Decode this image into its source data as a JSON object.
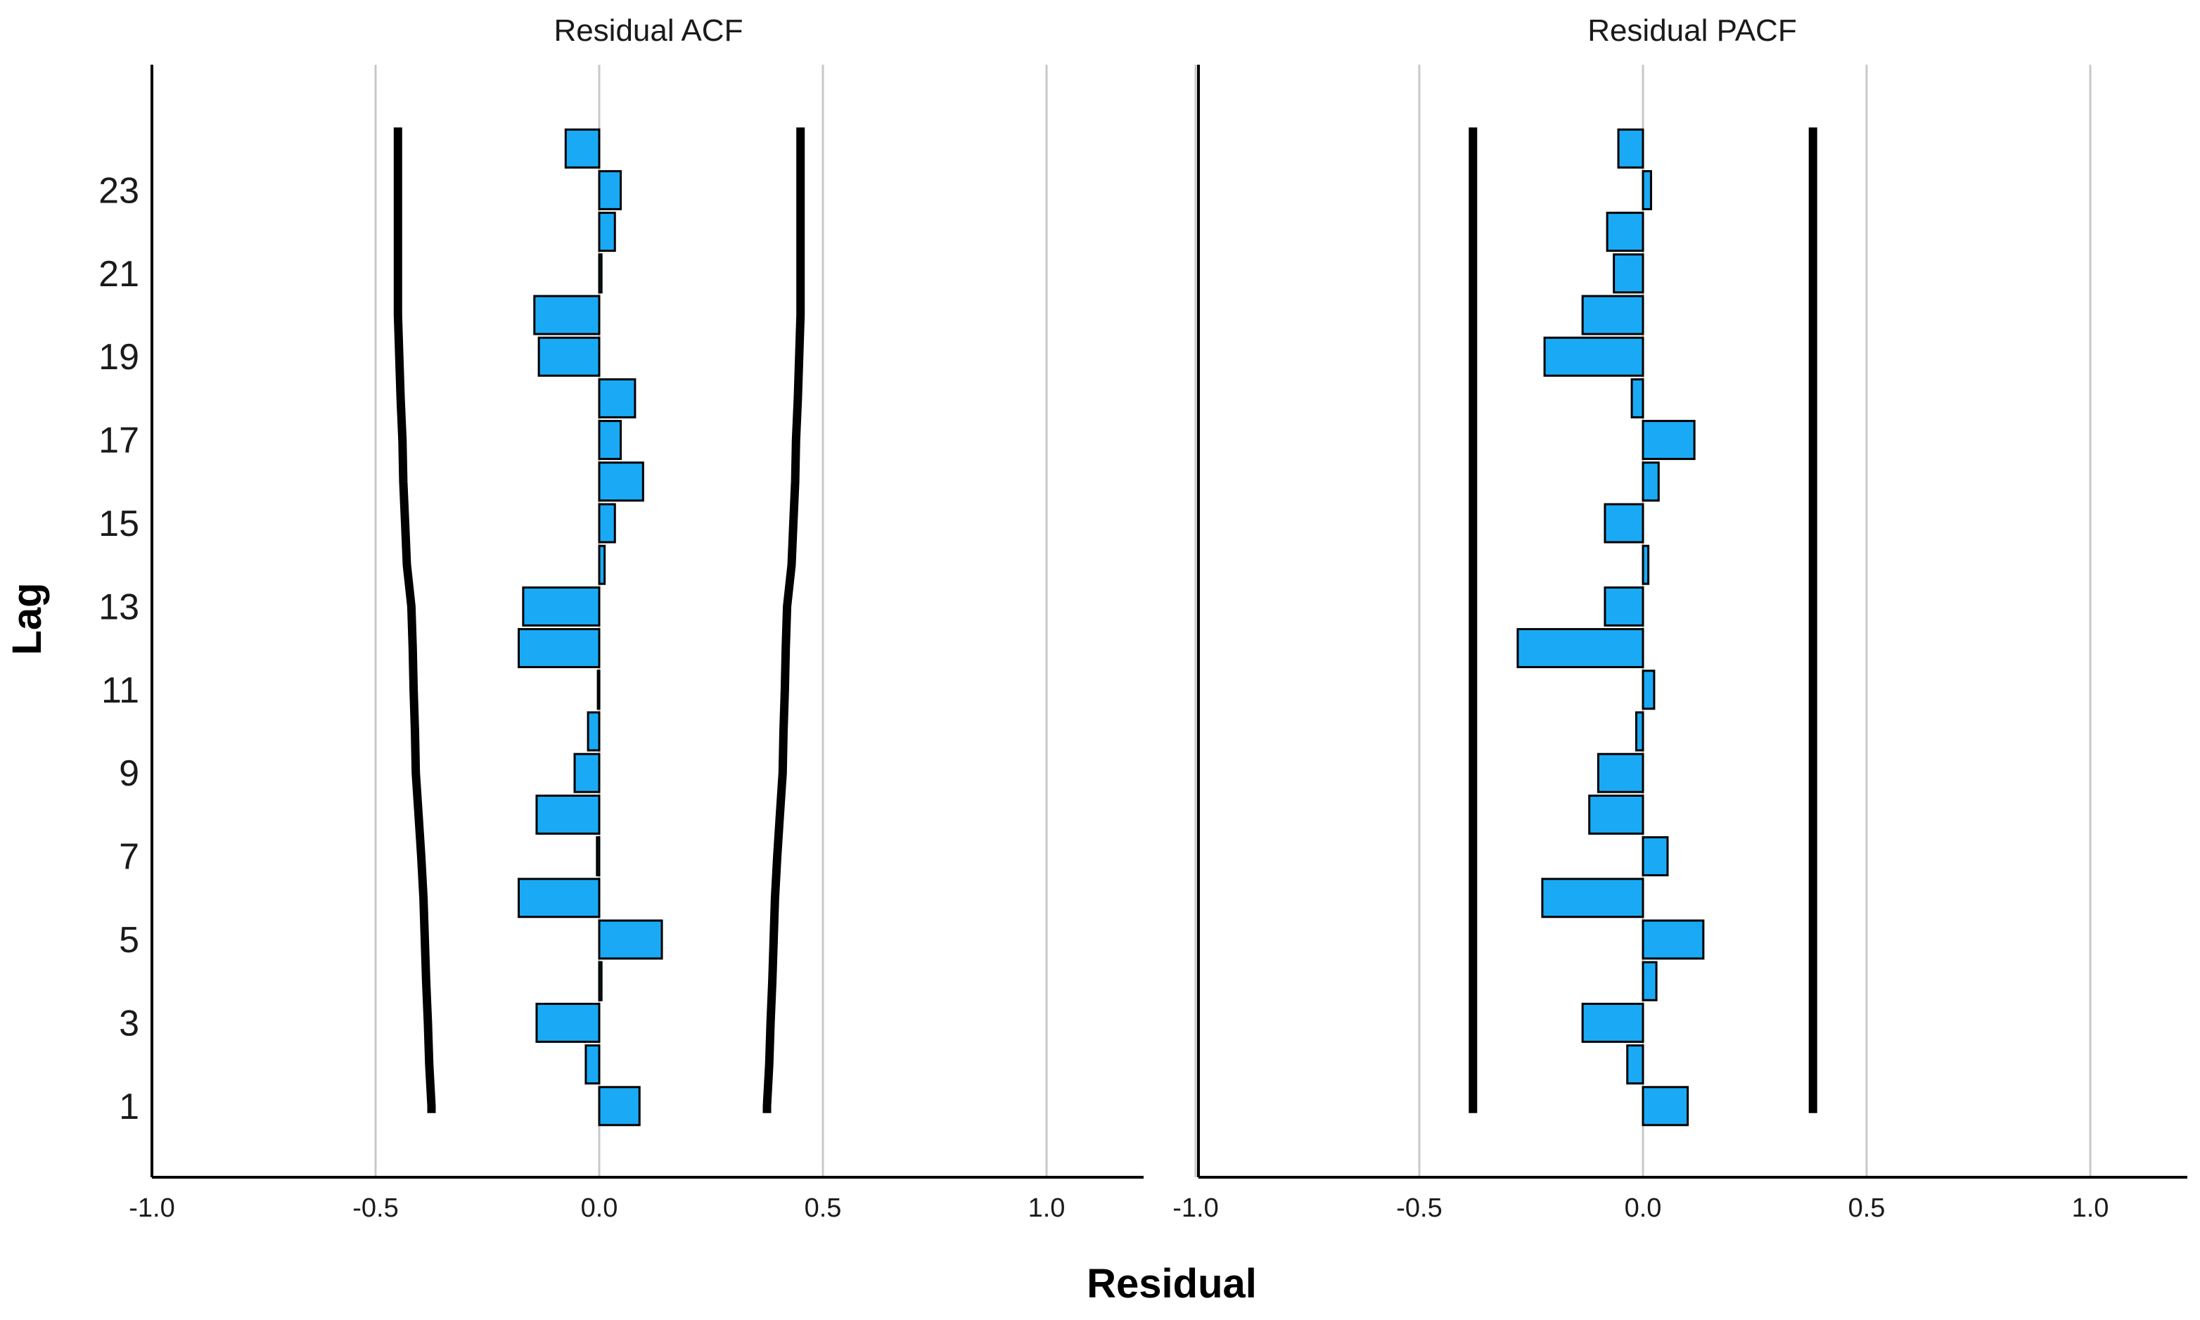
{
  "chart_data": {
    "type": "bar",
    "orientation": "horizontal",
    "xlabel": "Residual",
    "ylabel": "Lag",
    "xlim": [
      -1.0,
      1.2
    ],
    "x_ticks": [
      "-1.0",
      "-0.5",
      "0.0",
      "0.5",
      "1.0"
    ],
    "x_tick_values": [
      -1.0,
      -0.5,
      0.0,
      0.5,
      1.0
    ],
    "y_ticks": [
      "1",
      "3",
      "5",
      "7",
      "9",
      "11",
      "13",
      "15",
      "17",
      "19",
      "21",
      "23"
    ],
    "y_tick_values": [
      1,
      3,
      5,
      7,
      9,
      11,
      13,
      15,
      17,
      19,
      21,
      23
    ],
    "lags": [
      1,
      2,
      3,
      4,
      5,
      6,
      7,
      8,
      9,
      10,
      11,
      12,
      13,
      14,
      15,
      16,
      17,
      18,
      19,
      20,
      21,
      22,
      23,
      24
    ],
    "bar_color": "#1aaaf5",
    "panels": [
      {
        "title": "Residual ACF",
        "values": [
          0.09,
          -0.03,
          -0.14,
          0.005,
          0.14,
          -0.18,
          -0.005,
          -0.14,
          -0.055,
          -0.025,
          -0.003,
          -0.18,
          -0.17,
          0.012,
          0.035,
          0.098,
          0.048,
          0.08,
          -0.135,
          -0.145,
          0.005,
          0.035,
          0.048,
          -0.075
        ],
        "upper_conf": [
          0.375,
          0.38,
          0.383,
          0.387,
          0.39,
          0.393,
          0.398,
          0.404,
          0.41,
          0.412,
          0.415,
          0.417,
          0.42,
          0.43,
          0.434,
          0.438,
          0.44,
          0.444,
          0.447,
          0.45,
          0.45,
          0.45,
          0.45,
          0.45
        ],
        "lower_conf": [
          -0.375,
          -0.38,
          -0.383,
          -0.387,
          -0.39,
          -0.393,
          -0.398,
          -0.404,
          -0.41,
          -0.412,
          -0.415,
          -0.417,
          -0.42,
          -0.43,
          -0.434,
          -0.438,
          -0.44,
          -0.444,
          -0.447,
          -0.45,
          -0.45,
          -0.45,
          -0.45,
          -0.45
        ]
      },
      {
        "title": "Residual PACF",
        "values": [
          0.1,
          -0.035,
          -0.135,
          0.03,
          0.135,
          -0.225,
          0.055,
          -0.12,
          -0.1,
          -0.015,
          0.025,
          -0.28,
          -0.085,
          0.012,
          -0.085,
          0.035,
          0.115,
          -0.025,
          -0.22,
          -0.135,
          -0.065,
          -0.08,
          0.018,
          -0.055
        ],
        "upper_conf": [
          0.38,
          0.38,
          0.38,
          0.38,
          0.38,
          0.38,
          0.38,
          0.38,
          0.38,
          0.38,
          0.38,
          0.38,
          0.38,
          0.38,
          0.38,
          0.38,
          0.38,
          0.38,
          0.38,
          0.38,
          0.38,
          0.38,
          0.38,
          0.38
        ],
        "lower_conf": [
          -0.38,
          -0.38,
          -0.38,
          -0.38,
          -0.38,
          -0.38,
          -0.38,
          -0.38,
          -0.38,
          -0.38,
          -0.38,
          -0.38,
          -0.38,
          -0.38,
          -0.38,
          -0.38,
          -0.38,
          -0.38,
          -0.38,
          -0.38,
          -0.38,
          -0.38,
          -0.38,
          -0.38
        ]
      }
    ]
  }
}
